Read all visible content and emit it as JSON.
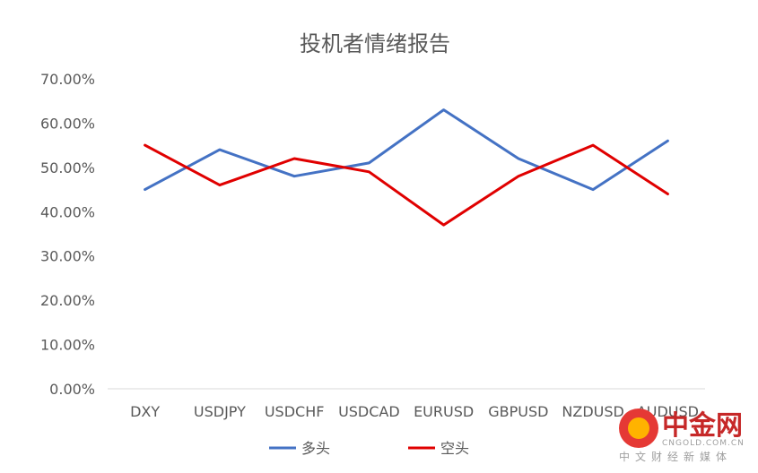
{
  "chart_data": {
    "type": "line",
    "title": "投机者情绪报告",
    "xlabel": "",
    "ylabel": "",
    "categories": [
      "DXY",
      "USDJPY",
      "USDCHF",
      "USDCAD",
      "EURUSD",
      "GBPUSD",
      "NZDUSD",
      "AUDUSD"
    ],
    "y_ticks": [
      "0.00%",
      "10.00%",
      "20.00%",
      "30.00%",
      "40.00%",
      "50.00%",
      "60.00%",
      "70.00%"
    ],
    "ylim": [
      0,
      70
    ],
    "grid": false,
    "legend_position": "bottom",
    "series": [
      {
        "name": "多头",
        "color": "#4472C4",
        "values": [
          45,
          54,
          48,
          51,
          63,
          52,
          45,
          56
        ]
      },
      {
        "name": "空头",
        "color": "#E00000",
        "values": [
          55,
          46,
          52,
          49,
          37,
          48,
          55,
          44
        ]
      }
    ]
  },
  "watermark": {
    "logo_text": "中金网",
    "domain": "CNGOLD.COM.CN",
    "tagline": "中文财经新媒体"
  }
}
